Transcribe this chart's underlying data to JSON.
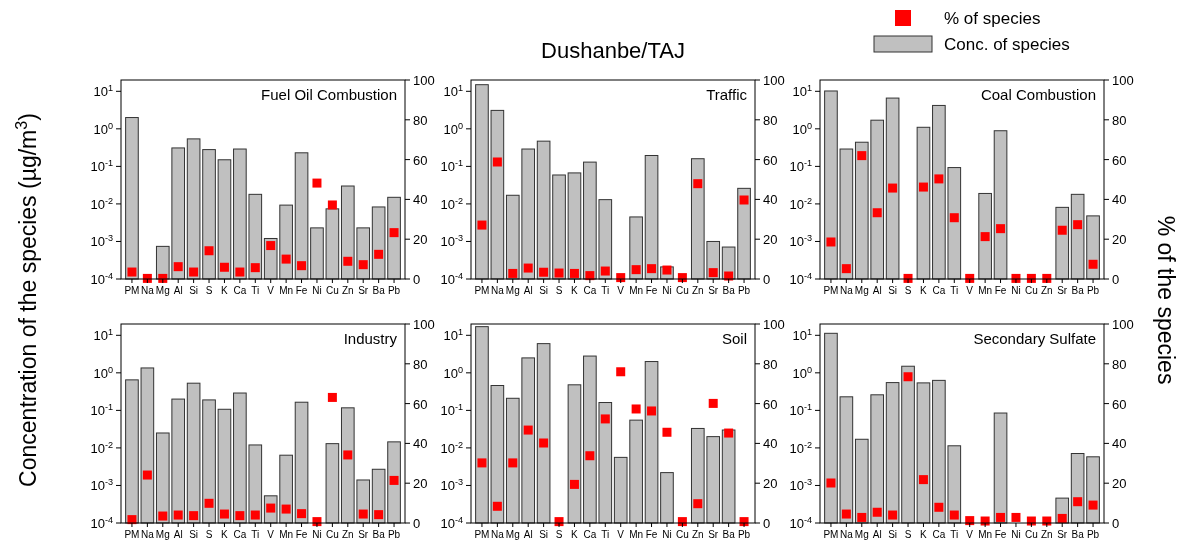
{
  "chart_data": [
    {
      "type": "bar",
      "title": "Fuel Oil Combustion",
      "ylabel": "Concentration of the species (µg/m$^{3}$)",
      "categories": [
        "PM",
        "Na",
        "Mg",
        "Al",
        "Si",
        "S",
        "K",
        "Ca",
        "Ti",
        "V",
        "Mn",
        "Fe",
        "Ni",
        "Cu",
        "Zn",
        "Sr",
        "Ba",
        "Pb"
      ],
      "log": "y",
      "ylim": [
        0.0001,
        20
      ],
      "yticks": [
        {
          "value": 0.0001,
          "label": "10$^{-4}$"
        },
        {
          "value": 0.001,
          "label": "10$^{-3}$"
        },
        {
          "value": 0.01,
          "label": "10$^{-2}$"
        },
        {
          "value": 0.1,
          "label": "10$^{-1}$"
        },
        {
          "value": 1,
          "label": "10$^{0}$"
        },
        {
          "value": 10,
          "label": "10$^{1}$"
        }
      ],
      "y2lim": [
        0,
        100
      ],
      "y2ticks": [
        0,
        20,
        40,
        60,
        80,
        100
      ],
      "marker": "square",
      "series": [
        {
          "type": "bar",
          "color": "#c0c0c0",
          "values": [
            2.0,
            null,
            0.00074,
            0.31,
            0.54,
            0.28,
            0.15,
            0.29,
            0.018,
            0.0012,
            0.0093,
            0.23,
            0.0023,
            0.0074,
            0.03,
            0.0023,
            0.0083,
            0.015
          ]
        },
        {
          "type": "scatter",
          "axis": "y2",
          "color": "#ff0000",
          "values": [
            3.5,
            0.3,
            0.3,
            6.2,
            3.5,
            14.2,
            5.9,
            3.5,
            5.7,
            16.8,
            10,
            6.7,
            48.2,
            37.2,
            8.9,
            7.2,
            12.4,
            23.3
          ]
        }
      ]
    },
    {
      "type": "bar",
      "title": "Traffic",
      "annotations": [
        "Dushanbe/TAJ"
      ],
      "categories": [
        "PM",
        "Na",
        "Mg",
        "Al",
        "Si",
        "S",
        "K",
        "Ca",
        "Ti",
        "V",
        "Mn",
        "Fe",
        "Ni",
        "Cu",
        "Zn",
        "Sr",
        "Ba",
        "Pb"
      ],
      "log": "y",
      "ylim": [
        0.0001,
        20
      ],
      "yticks": [
        {
          "value": 0.0001,
          "label": "10$^{-4}$"
        },
        {
          "value": 0.001,
          "label": "10$^{-3}$"
        },
        {
          "value": 0.01,
          "label": "10$^{-2}$"
        },
        {
          "value": 0.1,
          "label": "10$^{-1}$"
        },
        {
          "value": 1,
          "label": "10$^{0}$"
        },
        {
          "value": 10,
          "label": "10$^{1}$"
        }
      ],
      "y2lim": [
        0,
        100
      ],
      "y2ticks": [
        0,
        20,
        40,
        60,
        80,
        100
      ],
      "marker": "square",
      "series": [
        {
          "type": "bar",
          "color": "#c0c0c0",
          "values": [
            15,
            3.1,
            0.017,
            0.29,
            0.47,
            0.059,
            0.067,
            0.13,
            0.013,
            null,
            0.0045,
            0.195,
            0.00021,
            null,
            0.16,
            0.001,
            0.00071,
            0.026
          ]
        },
        {
          "type": "scatter",
          "axis": "y2",
          "color": "#ff0000",
          "values": [
            27.1,
            58.8,
            2.8,
            5.5,
            3.4,
            3.0,
            2.8,
            1.7,
            4.0,
            0.7,
            4.7,
            5.2,
            4.5,
            0.7,
            47.9,
            3.2,
            1.5,
            39.7
          ]
        }
      ]
    },
    {
      "type": "bar",
      "title": "Coal Combustion",
      "y2label": "% of the species",
      "legend": "top right",
      "categories": [
        "PM",
        "Na",
        "Mg",
        "Al",
        "Si",
        "S",
        "K",
        "Ca",
        "Ti",
        "V",
        "Mn",
        "Fe",
        "Ni",
        "Cu",
        "Zn",
        "Sr",
        "Ba",
        "Pb"
      ],
      "log": "y",
      "ylim": [
        0.0001,
        20
      ],
      "yticks": [
        {
          "value": 0.0001,
          "label": "10$^{-4}$"
        },
        {
          "value": 0.001,
          "label": "10$^{-3}$"
        },
        {
          "value": 0.01,
          "label": "10$^{-2}$"
        },
        {
          "value": 0.1,
          "label": "10$^{-1}$"
        },
        {
          "value": 1,
          "label": "10$^{0}$"
        },
        {
          "value": 10,
          "label": "10$^{1}$"
        }
      ],
      "y2lim": [
        0,
        100
      ],
      "y2ticks": [
        0,
        20,
        40,
        60,
        80,
        100
      ],
      "marker": "square",
      "series": [
        {
          "type": "scatter",
          "name": "% of species",
          "axis": "y2",
          "color": "#ff0000",
          "values": [
            18.6,
            5.2,
            62,
            33.3,
            45.7,
            0.3,
            46.2,
            50.3,
            30.8,
            0.3,
            21.3,
            25.3,
            0.3,
            0.3,
            0.3,
            24.5,
            27.3,
            7.4
          ]
        },
        {
          "type": "bar",
          "name": "Conc. of species",
          "color": "#c0c0c0",
          "values": [
            10.2,
            0.29,
            0.44,
            1.7,
            6.6,
            null,
            1.1,
            4.2,
            0.093,
            null,
            0.019,
            0.89,
            null,
            null,
            null,
            0.0081,
            0.018,
            0.0048
          ]
        }
      ]
    },
    {
      "type": "bar",
      "title": "Industry",
      "categories": [
        "PM",
        "Na",
        "Mg",
        "Al",
        "Si",
        "S",
        "K",
        "Ca",
        "Ti",
        "V",
        "Mn",
        "Fe",
        "Ni",
        "Cu",
        "Zn",
        "Sr",
        "Ba",
        "Pb"
      ],
      "log": "y",
      "ylim": [
        0.0001,
        20
      ],
      "yticks": [
        {
          "value": 0.0001,
          "label": "10$^{-4}$"
        },
        {
          "value": 0.001,
          "label": "10$^{-3}$"
        },
        {
          "value": 0.01,
          "label": "10$^{-2}$"
        },
        {
          "value": 0.1,
          "label": "10$^{-1}$"
        },
        {
          "value": 1,
          "label": "10$^{0}$"
        },
        {
          "value": 10,
          "label": "10$^{1}$"
        }
      ],
      "y2lim": [
        0,
        100
      ],
      "y2ticks": [
        0,
        20,
        40,
        60,
        80,
        100
      ],
      "marker": "square",
      "series": [
        {
          "type": "bar",
          "color": "#c0c0c0",
          "values": [
            0.65,
            1.35,
            0.025,
            0.2,
            0.53,
            0.19,
            0.107,
            0.29,
            0.012,
            0.00053,
            0.0064,
            0.165,
            null,
            0.013,
            0.117,
            0.0014,
            0.0027,
            0.0145
          ]
        },
        {
          "type": "scatter",
          "axis": "y2",
          "color": "#ff0000",
          "values": [
            1.7,
            24.1,
            3.5,
            4.0,
            3.7,
            9.9,
            4.5,
            3.7,
            4.0,
            7.5,
            7.0,
            4.7,
            0.7,
            63.1,
            34.2,
            4.5,
            4.2,
            21.4
          ]
        }
      ]
    },
    {
      "type": "bar",
      "title": "Soil",
      "categories": [
        "PM",
        "Na",
        "Mg",
        "Al",
        "Si",
        "S",
        "K",
        "Ca",
        "Ti",
        "V",
        "Mn",
        "Fe",
        "Ni",
        "Cu",
        "Zn",
        "Sr",
        "Ba",
        "Pb"
      ],
      "log": "y",
      "ylim": [
        0.0001,
        20
      ],
      "yticks": [
        {
          "value": 0.0001,
          "label": "10$^{-4}$"
        },
        {
          "value": 0.001,
          "label": "10$^{-3}$"
        },
        {
          "value": 0.01,
          "label": "10$^{-2}$"
        },
        {
          "value": 0.1,
          "label": "10$^{-1}$"
        },
        {
          "value": 1,
          "label": "10$^{0}$"
        },
        {
          "value": 10,
          "label": "10$^{1}$"
        }
      ],
      "y2lim": [
        0,
        100
      ],
      "y2ticks": [
        0,
        20,
        40,
        60,
        80,
        100
      ],
      "marker": "square",
      "series": [
        {
          "type": "bar",
          "color": "#c0c0c0",
          "values": [
            17,
            0.46,
            0.21,
            2.5,
            6.0,
            null,
            0.48,
            2.8,
            0.162,
            0.0056,
            0.055,
            2.0,
            0.0022,
            null,
            0.033,
            0.02,
            0.03,
            null
          ]
        },
        {
          "type": "scatter",
          "axis": "y2",
          "color": "#ff0000",
          "values": [
            30.2,
            8.4,
            30.2,
            46.7,
            40.2,
            0.7,
            19.4,
            33.8,
            52.3,
            76,
            57.3,
            56.3,
            45.6,
            0.7,
            9.7,
            60.1,
            45.2,
            0.7
          ]
        }
      ]
    },
    {
      "type": "bar",
      "title": "Secondary Sulfate",
      "categories": [
        "PM",
        "Na",
        "Mg",
        "Al",
        "Si",
        "S",
        "K",
        "Ca",
        "Ti",
        "V",
        "Mn",
        "Fe",
        "Ni",
        "Cu",
        "Zn",
        "Sr",
        "Ba",
        "Pb"
      ],
      "log": "y",
      "ylim": [
        0.0001,
        20
      ],
      "yticks": [
        {
          "value": 0.0001,
          "label": "10$^{-4}$"
        },
        {
          "value": 0.001,
          "label": "10$^{-3}$"
        },
        {
          "value": 0.01,
          "label": "10$^{-2}$"
        },
        {
          "value": 0.1,
          "label": "10$^{-1}$"
        },
        {
          "value": 1,
          "label": "10$^{0}$"
        },
        {
          "value": 10,
          "label": "10$^{1}$"
        }
      ],
      "y2lim": [
        0,
        100
      ],
      "y2ticks": [
        0,
        20,
        40,
        60,
        80,
        100
      ],
      "marker": "square",
      "series": [
        {
          "type": "bar",
          "color": "#c0c0c0",
          "values": [
            11.3,
            0.23,
            0.017,
            0.26,
            0.55,
            1.5,
            0.54,
            0.63,
            0.0114,
            null,
            null,
            0.085,
            null,
            null,
            null,
            0.00046,
            0.0071,
            0.0058
          ]
        },
        {
          "type": "scatter",
          "axis": "y2",
          "color": "#ff0000",
          "values": [
            20.1,
            4.5,
            2.8,
            5.4,
            4.0,
            73.5,
            21.8,
            7.9,
            4.0,
            1.2,
            1.0,
            2.8,
            2.8,
            1.0,
            1.0,
            2.3,
            10.7,
            9.0
          ]
        }
      ]
    }
  ]
}
